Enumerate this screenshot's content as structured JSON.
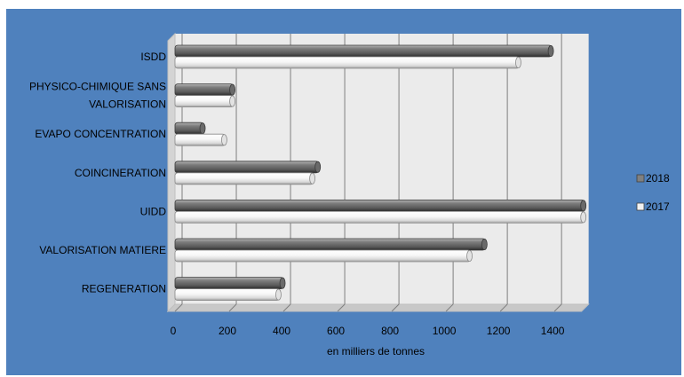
{
  "chart_data": {
    "type": "bar",
    "orientation": "horizontal",
    "style": "3d-cylinder",
    "categories": [
      [
        "ISDD"
      ],
      [
        "PHYSICO-CHIMIQUE SANS",
        "VALORISATION"
      ],
      [
        "EVAPO CONCENTRATION"
      ],
      [
        "COINCINERATION"
      ],
      [
        "UIDD"
      ],
      [
        "VALORISATION MATIERE"
      ],
      [
        "REGENERATION"
      ]
    ],
    "series": [
      {
        "name": "2018",
        "color": "#808080",
        "values": [
          1390,
          215,
          105,
          530,
          1510,
          1145,
          400
        ]
      },
      {
        "name": "2017",
        "color": "#f2f2f2",
        "values": [
          1270,
          215,
          185,
          510,
          1510,
          1090,
          385
        ]
      }
    ],
    "x_ticks": [
      0,
      200,
      400,
      600,
      800,
      1000,
      1200,
      1400
    ],
    "xlim": [
      0,
      1500
    ],
    "xlabel": "en milliers de tonnes",
    "grid": true,
    "legend": "right",
    "colors": {
      "frame": "#4f81bd",
      "plot_wall": "#ebebeb",
      "gridline": "#7f7f7f"
    }
  }
}
